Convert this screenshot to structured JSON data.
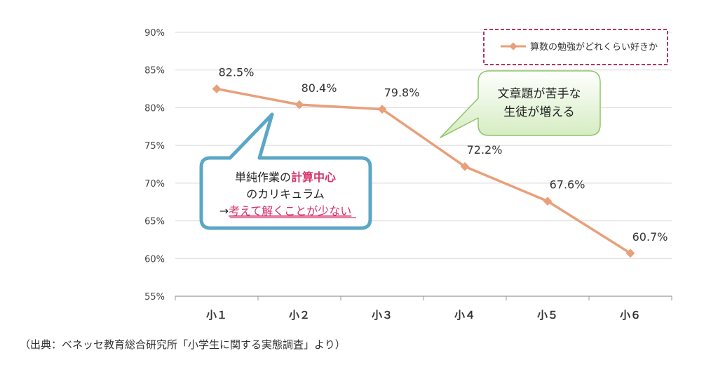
{
  "chart_data": {
    "type": "line",
    "categories": [
      "小１",
      "小２",
      "小３",
      "小４",
      "小５",
      "小６"
    ],
    "series": [
      {
        "name": "算数の勉強がどれくらい好きか",
        "values": [
          82.5,
          80.4,
          79.8,
          72.2,
          67.6,
          60.7
        ],
        "labels": [
          "82.5%",
          "80.4%",
          "79.8%",
          "72.2%",
          "67.6%",
          "60.7%"
        ]
      }
    ],
    "y_ticks": [
      "90%",
      "85%",
      "80%",
      "75%",
      "70%",
      "65%",
      "60%",
      "55%"
    ],
    "y_tick_values": [
      90,
      85,
      80,
      75,
      70,
      65,
      60,
      55
    ],
    "ylim": [
      55,
      90
    ],
    "grid": true,
    "legend": "top-right",
    "colors": {
      "line": "#E8A07A",
      "legend_border": "#B0356A",
      "callout_blue": "#5BA7C6",
      "callout_green": "#8FC46A",
      "highlight": "#D6336C"
    }
  },
  "callout_left": {
    "line1_prefix": "単純作業の",
    "line1_highlight": "計算中心",
    "line2": "のカリキュラム",
    "line3_arrow": "→",
    "line3_highlight": "考えて解くことが少ない"
  },
  "callout_right": {
    "line1": "文章題が苦手な",
    "line2": "生徒が増える"
  },
  "source": "（出典：ベネッセ教育総合研究所「小学生に関する実態調査」より）"
}
